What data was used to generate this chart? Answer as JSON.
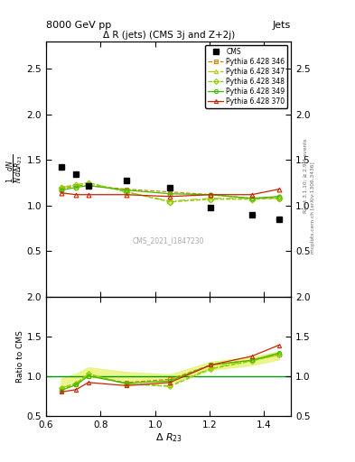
{
  "title_main": "Δ R (jets) (CMS 3j and Z+2j)",
  "header_left": "8000 GeV pp",
  "header_right": "Jets",
  "watermark": "CMS_2021_I1847230",
  "ylabel_main": "$\\frac{1}{N}\\frac{dN}{d\\Delta R_{23}}$",
  "ylabel_ratio": "Ratio to CMS",
  "xlabel": "$\\Delta\\ R_{23}$",
  "right_label": "mcplots.cern.ch [arXiv:1306.3436]",
  "right_label2": "Rivet 3.1.10; ≥ 2.9M events",
  "xlim": [
    0.6,
    1.5
  ],
  "ylim_main": [
    0.0,
    2.8
  ],
  "ylim_ratio": [
    0.5,
    2.0
  ],
  "yticks_main": [
    0.5,
    1.0,
    1.5,
    2.0,
    2.5
  ],
  "yticks_ratio": [
    0.5,
    1.0,
    1.5,
    2.0
  ],
  "cms_x": [
    0.655,
    0.71,
    0.755,
    0.895,
    1.055,
    1.205,
    1.355,
    1.455
  ],
  "cms_y": [
    1.42,
    1.35,
    1.22,
    1.28,
    1.2,
    0.98,
    0.9,
    0.85
  ],
  "py346_x": [
    0.655,
    0.71,
    0.755,
    0.895,
    1.055,
    1.205,
    1.355,
    1.455
  ],
  "py346_y": [
    1.18,
    1.22,
    1.22,
    1.18,
    1.15,
    1.12,
    1.08,
    1.08
  ],
  "py346_color": "#cc8800",
  "py347_x": [
    0.655,
    0.71,
    0.755,
    0.895,
    1.055,
    1.205,
    1.355,
    1.455
  ],
  "py347_y": [
    1.2,
    1.22,
    1.25,
    1.15,
    1.05,
    1.08,
    1.08,
    1.1
  ],
  "py347_color": "#aacc00",
  "py348_x": [
    0.655,
    0.71,
    0.755,
    0.895,
    1.055,
    1.205,
    1.355,
    1.455
  ],
  "py348_y": [
    1.2,
    1.23,
    1.25,
    1.15,
    1.04,
    1.07,
    1.07,
    1.08
  ],
  "py348_color": "#88cc00",
  "py349_x": [
    0.655,
    0.71,
    0.755,
    0.895,
    1.055,
    1.205,
    1.355,
    1.455
  ],
  "py349_y": [
    1.17,
    1.2,
    1.22,
    1.17,
    1.13,
    1.12,
    1.08,
    1.1
  ],
  "py349_color": "#44bb00",
  "py370_x": [
    0.655,
    0.71,
    0.755,
    0.895,
    1.055,
    1.205,
    1.355,
    1.455
  ],
  "py370_y": [
    1.14,
    1.12,
    1.12,
    1.12,
    1.1,
    1.12,
    1.12,
    1.18
  ],
  "py370_color": "#cc2200",
  "ratio346": [
    0.83,
    0.9,
    1.0,
    0.92,
    0.96,
    1.14,
    1.2,
    1.27
  ],
  "ratio347": [
    0.85,
    0.9,
    1.02,
    0.9,
    0.88,
    1.1,
    1.2,
    1.29
  ],
  "ratio348": [
    0.85,
    0.91,
    1.03,
    0.9,
    0.87,
    1.09,
    1.19,
    1.27
  ],
  "ratio349": [
    0.82,
    0.89,
    1.0,
    0.91,
    0.94,
    1.14,
    1.2,
    1.29
  ],
  "ratio370": [
    0.8,
    0.83,
    0.92,
    0.88,
    0.92,
    1.14,
    1.25,
    1.39
  ],
  "band_ylo": [
    0.88,
    0.94,
    1.02,
    0.96,
    0.93,
    1.09,
    1.15,
    1.22
  ],
  "band_yhi": [
    0.96,
    1.02,
    1.1,
    1.04,
    1.01,
    1.17,
    1.23,
    1.3
  ],
  "band2_ylo": [
    0.87,
    0.93,
    1.01,
    0.95,
    0.92,
    1.08,
    1.14,
    1.21
  ],
  "band2_yhi": [
    0.97,
    1.03,
    1.11,
    1.05,
    1.02,
    1.18,
    1.24,
    1.31
  ]
}
